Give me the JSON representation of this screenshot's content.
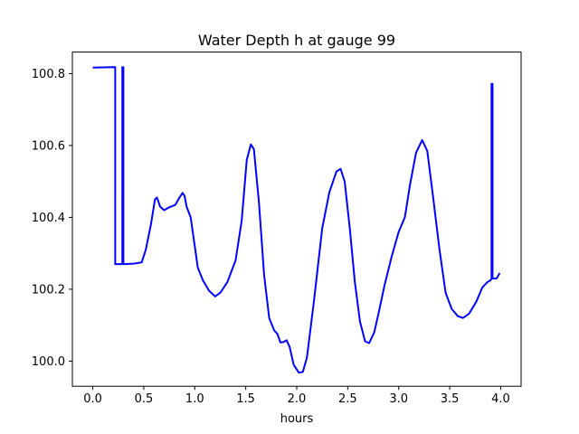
{
  "chart_data": {
    "type": "line",
    "title": "Water Depth h at gauge 99",
    "xlabel": "hours",
    "ylabel": "",
    "xlim": [
      -0.2,
      4.2
    ],
    "ylim": [
      99.93,
      100.86
    ],
    "xticks": [
      0.0,
      0.5,
      1.0,
      1.5,
      2.0,
      2.5,
      3.0,
      3.5,
      4.0
    ],
    "xtick_labels": [
      "0.0",
      "0.5",
      "1.0",
      "1.5",
      "2.0",
      "2.5",
      "3.0",
      "3.5",
      "4.0"
    ],
    "yticks": [
      100.0,
      100.2,
      100.4,
      100.6,
      100.8
    ],
    "ytick_labels": [
      "100.0",
      "100.2",
      "100.4",
      "100.6",
      "100.8"
    ],
    "grid": false,
    "series": [
      {
        "color": "#0000ff",
        "points": [
          [
            0.0,
            100.817
          ],
          [
            0.22,
            100.818
          ],
          [
            0.22,
            100.27
          ],
          [
            0.29,
            100.27
          ],
          [
            0.29,
            100.818
          ],
          [
            0.3,
            100.818
          ],
          [
            0.3,
            100.27
          ],
          [
            0.4,
            100.271
          ],
          [
            0.48,
            100.275
          ],
          [
            0.52,
            100.31
          ],
          [
            0.57,
            100.38
          ],
          [
            0.61,
            100.45
          ],
          [
            0.63,
            100.455
          ],
          [
            0.66,
            100.43
          ],
          [
            0.7,
            100.42
          ],
          [
            0.75,
            100.428
          ],
          [
            0.81,
            100.435
          ],
          [
            0.85,
            100.455
          ],
          [
            0.88,
            100.468
          ],
          [
            0.9,
            100.46
          ],
          [
            0.92,
            100.43
          ],
          [
            0.96,
            100.4
          ],
          [
            0.99,
            100.34
          ],
          [
            1.03,
            100.26
          ],
          [
            1.08,
            100.225
          ],
          [
            1.14,
            100.196
          ],
          [
            1.2,
            100.18
          ],
          [
            1.25,
            100.19
          ],
          [
            1.32,
            100.22
          ],
          [
            1.4,
            100.28
          ],
          [
            1.46,
            100.39
          ],
          [
            1.51,
            100.56
          ],
          [
            1.55,
            100.603
          ],
          [
            1.58,
            100.59
          ],
          [
            1.63,
            100.44
          ],
          [
            1.68,
            100.24
          ],
          [
            1.73,
            100.12
          ],
          [
            1.78,
            100.085
          ],
          [
            1.81,
            100.076
          ],
          [
            1.84,
            100.052
          ],
          [
            1.87,
            100.053
          ],
          [
            1.9,
            100.058
          ],
          [
            1.93,
            100.04
          ],
          [
            1.97,
            99.99
          ],
          [
            2.02,
            99.968
          ],
          [
            2.06,
            99.97
          ],
          [
            2.1,
            100.01
          ],
          [
            2.17,
            100.17
          ],
          [
            2.25,
            100.37
          ],
          [
            2.32,
            100.47
          ],
          [
            2.39,
            100.528
          ],
          [
            2.43,
            100.535
          ],
          [
            2.47,
            100.5
          ],
          [
            2.52,
            100.37
          ],
          [
            2.57,
            100.22
          ],
          [
            2.62,
            100.11
          ],
          [
            2.67,
            100.055
          ],
          [
            2.71,
            100.05
          ],
          [
            2.76,
            100.08
          ],
          [
            2.8,
            100.13
          ],
          [
            2.86,
            100.21
          ],
          [
            2.93,
            100.29
          ],
          [
            3.0,
            100.36
          ],
          [
            3.06,
            100.4
          ],
          [
            3.11,
            100.49
          ],
          [
            3.17,
            100.58
          ],
          [
            3.23,
            100.615
          ],
          [
            3.28,
            100.585
          ],
          [
            3.34,
            100.45
          ],
          [
            3.4,
            100.31
          ],
          [
            3.46,
            100.19
          ],
          [
            3.52,
            100.145
          ],
          [
            3.58,
            100.125
          ],
          [
            3.63,
            100.12
          ],
          [
            3.69,
            100.132
          ],
          [
            3.76,
            100.165
          ],
          [
            3.82,
            100.205
          ],
          [
            3.87,
            100.22
          ],
          [
            3.9,
            100.225
          ],
          [
            3.91,
            100.23
          ],
          [
            3.91,
            100.772
          ],
          [
            3.92,
            100.772
          ],
          [
            3.92,
            100.23
          ],
          [
            3.96,
            100.23
          ],
          [
            3.99,
            100.245
          ]
        ]
      }
    ]
  }
}
